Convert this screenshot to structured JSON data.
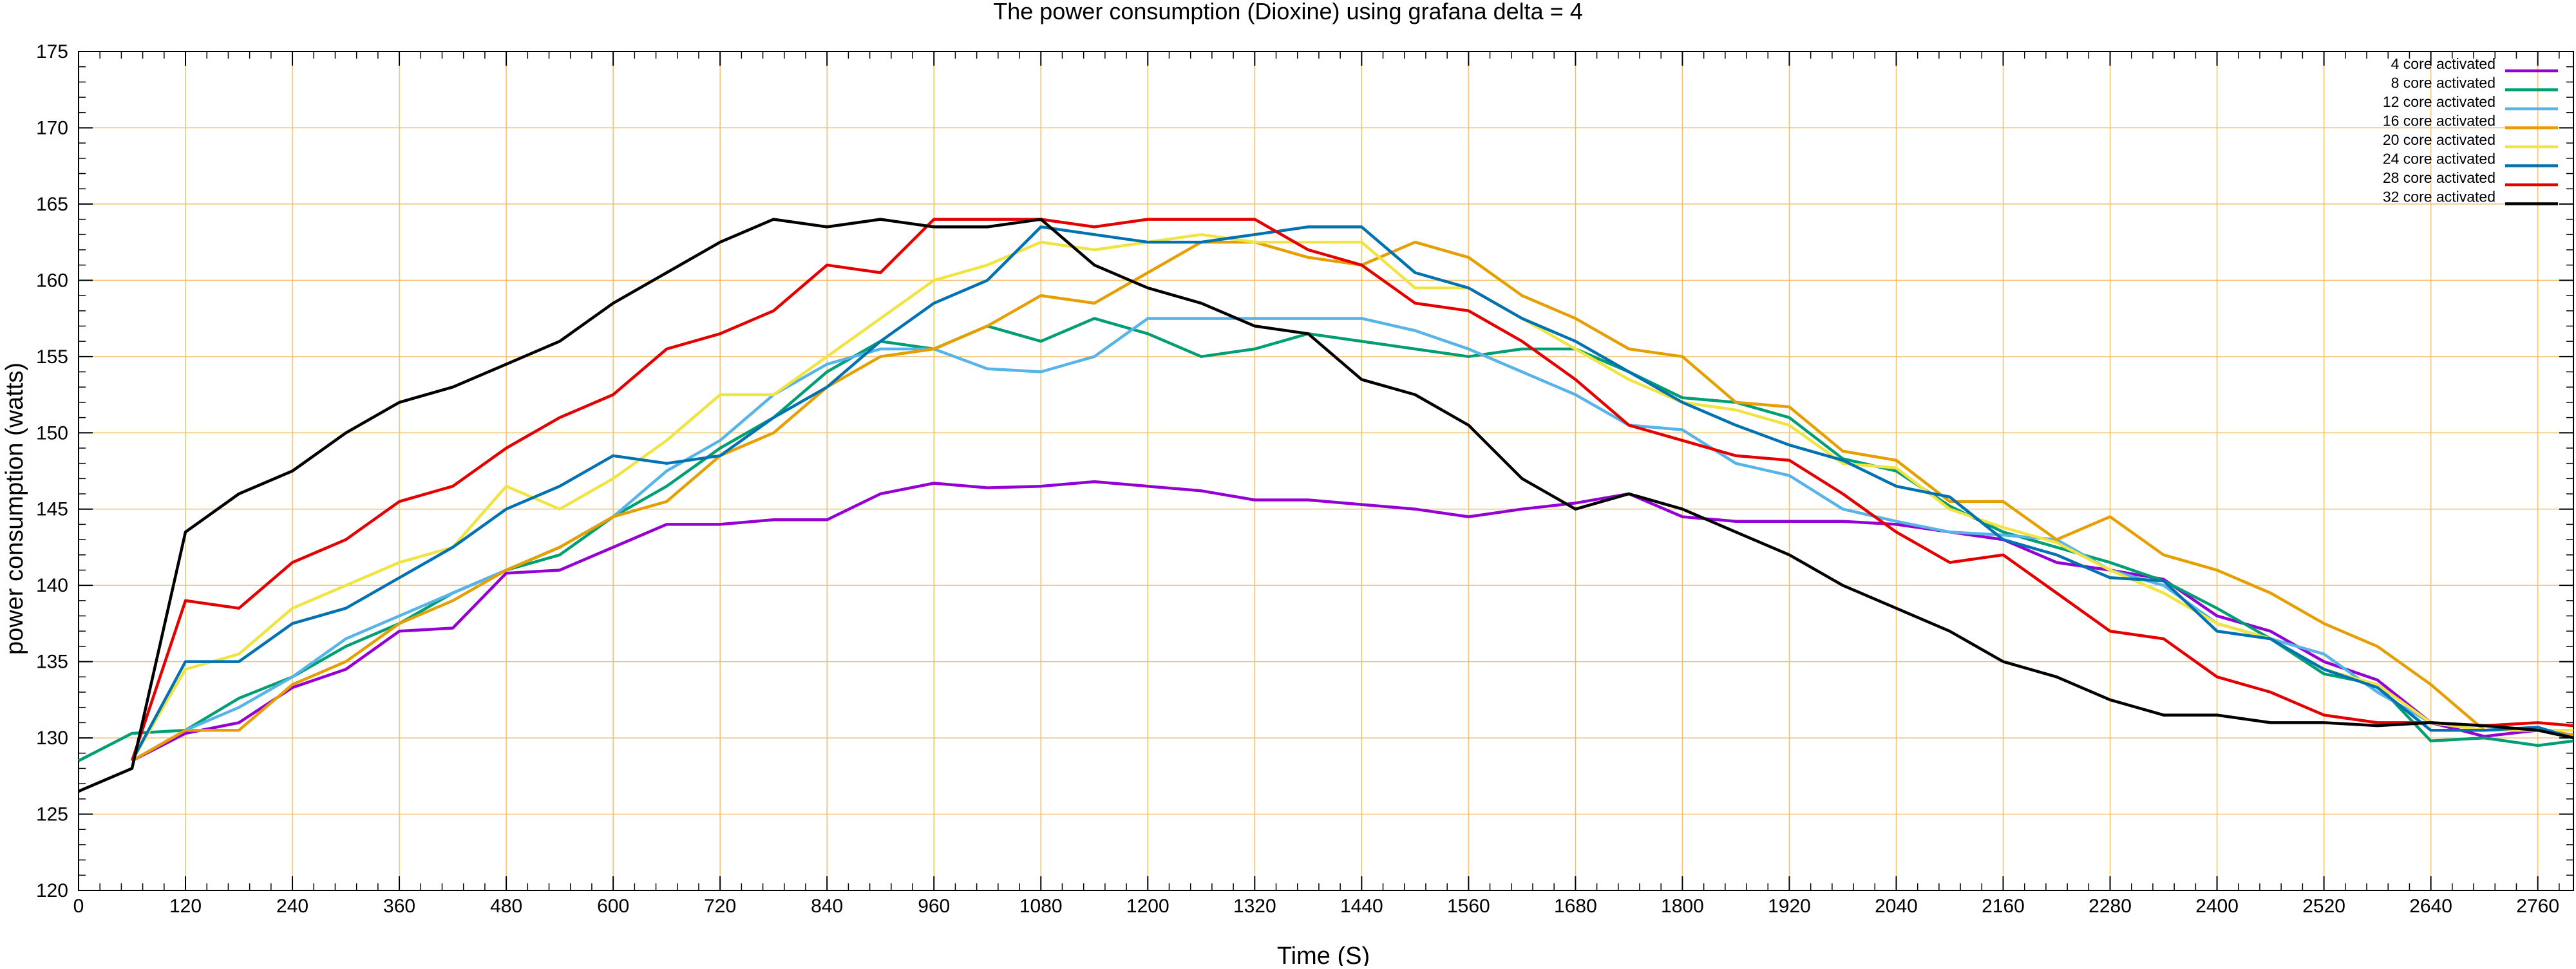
{
  "chart_data": {
    "type": "line",
    "title": "The power consumption (Dioxine) using grafana delta = 4",
    "xlabel": "Time (S)",
    "ylabel": "power consumption (watts)",
    "xlim": [
      0,
      2800
    ],
    "ylim": [
      120,
      175
    ],
    "x_ticks": [
      "0",
      "120",
      "240",
      "360",
      "480",
      "600",
      "720",
      "840",
      "960",
      "1080",
      "1200",
      "1320",
      "1440",
      "1560",
      "1680",
      "1800",
      "1920",
      "2040",
      "2160",
      "2280",
      "2400",
      "2520",
      "2640",
      "2760"
    ],
    "y_ticks": [
      "120",
      "125",
      "130",
      "135",
      "140",
      "145",
      "150",
      "155",
      "160",
      "165",
      "170",
      "175"
    ],
    "grid": true,
    "legend_position": "top-right",
    "series": [
      {
        "name": "4 core activated",
        "color": "#9400d3",
        "x": [
          60,
          120,
          180,
          240,
          300,
          360,
          420,
          480,
          540,
          600,
          660,
          720,
          780,
          840,
          900,
          960,
          1020,
          1080,
          1140,
          1200,
          1260,
          1320,
          1380,
          1440,
          1500,
          1560,
          1620,
          1680,
          1740,
          1800,
          1860,
          1920,
          1980,
          2040,
          2100,
          2160,
          2220,
          2280,
          2340,
          2400,
          2460,
          2520,
          2580,
          2640,
          2700,
          2760,
          2800
        ],
        "y": [
          128.5,
          130.3,
          131,
          133.3,
          134.5,
          137,
          137.2,
          140.8,
          141,
          142.5,
          144,
          144,
          144.3,
          144.3,
          146,
          146.7,
          146.4,
          146.5,
          146.8,
          146.5,
          146.2,
          145.6,
          145.6,
          145.3,
          145,
          144.5,
          145,
          145.4,
          146,
          144.5,
          144.2,
          144.2,
          144.2,
          144,
          143.5,
          143,
          141.5,
          141,
          140.4,
          138,
          137,
          135,
          133.8,
          131,
          130.1,
          130.5,
          130.2
        ]
      },
      {
        "name": "8 core activated",
        "color": "#009e73",
        "x": [
          0,
          60,
          120,
          180,
          240,
          300,
          360,
          420,
          480,
          540,
          600,
          660,
          720,
          780,
          840,
          900,
          960,
          1020,
          1080,
          1140,
          1200,
          1260,
          1320,
          1380,
          1440,
          1500,
          1560,
          1620,
          1680,
          1740,
          1800,
          1860,
          1920,
          1980,
          2040,
          2100,
          2160,
          2220,
          2280,
          2340,
          2400,
          2460,
          2520,
          2580,
          2640,
          2700,
          2760,
          2800
        ],
        "y": [
          128.5,
          130.3,
          130.5,
          132.6,
          134,
          136,
          137.5,
          139.5,
          141,
          142,
          144.5,
          146.5,
          149,
          151,
          154,
          156,
          155.5,
          157,
          156,
          157.5,
          156.5,
          155,
          155.5,
          156.5,
          156,
          155.5,
          155,
          155.5,
          155.5,
          154,
          152.3,
          152,
          151,
          148.3,
          147.5,
          145.2,
          143.5,
          142.5,
          141.5,
          140.3,
          138.5,
          136.5,
          134.2,
          133.5,
          129.8,
          130,
          129.5,
          129.8
        ]
      },
      {
        "name": "12 core activated",
        "color": "#56b4e9",
        "x": [
          60,
          120,
          180,
          240,
          300,
          360,
          420,
          480,
          540,
          600,
          660,
          720,
          780,
          840,
          900,
          960,
          1020,
          1080,
          1140,
          1200,
          1260,
          1320,
          1380,
          1440,
          1500,
          1560,
          1620,
          1680,
          1740,
          1800,
          1860,
          1920,
          1980,
          2040,
          2100,
          2160,
          2220,
          2280,
          2340,
          2400,
          2460,
          2520,
          2580,
          2640,
          2700,
          2760,
          2800
        ],
        "y": [
          128.5,
          130.5,
          132,
          134,
          136.5,
          138,
          139.5,
          141,
          142.5,
          144.5,
          147.5,
          149.5,
          152.5,
          154.5,
          155.5,
          155.5,
          154.2,
          154,
          155,
          157.5,
          157.5,
          157.5,
          157.5,
          157.5,
          156.7,
          155.5,
          154,
          152.5,
          150.5,
          150.2,
          148,
          147.2,
          145,
          144.2,
          143.5,
          143.3,
          143,
          141,
          140,
          137.5,
          136.5,
          135.5,
          133,
          131,
          130.5,
          130.5,
          130.5
        ]
      },
      {
        "name": "16 core activated",
        "color": "#e69f00",
        "x": [
          60,
          120,
          180,
          240,
          300,
          360,
          420,
          480,
          540,
          600,
          660,
          720,
          780,
          840,
          900,
          960,
          1020,
          1080,
          1140,
          1200,
          1260,
          1320,
          1380,
          1440,
          1500,
          1560,
          1620,
          1680,
          1740,
          1800,
          1860,
          1920,
          1980,
          2040,
          2100,
          2160,
          2220,
          2280,
          2340,
          2400,
          2460,
          2520,
          2580,
          2640,
          2700,
          2760,
          2800
        ],
        "y": [
          128.5,
          130.5,
          130.5,
          133.5,
          135,
          137.5,
          139,
          141,
          142.5,
          144.5,
          145.5,
          148.5,
          150,
          153,
          155,
          155.5,
          157,
          159,
          158.5,
          160.5,
          162.5,
          162.5,
          161.5,
          161,
          162.5,
          161.5,
          159,
          157.5,
          155.5,
          155,
          152,
          151.7,
          148.8,
          148.2,
          145.5,
          145.5,
          143,
          144.5,
          142,
          141,
          139.5,
          137.5,
          136,
          133.5,
          130.5,
          130.5,
          130.2
        ]
      },
      {
        "name": "20 core activated",
        "color": "#f0e442",
        "x": [
          60,
          120,
          180,
          240,
          300,
          360,
          420,
          480,
          540,
          600,
          660,
          720,
          780,
          840,
          900,
          960,
          1020,
          1080,
          1140,
          1200,
          1260,
          1320,
          1380,
          1440,
          1500,
          1560,
          1620,
          1680,
          1740,
          1800,
          1860,
          1920,
          1980,
          2040,
          2100,
          2160,
          2220,
          2280,
          2340,
          2400,
          2460,
          2520,
          2580,
          2640,
          2700,
          2760,
          2800
        ],
        "y": [
          128.5,
          134.5,
          135.5,
          138.5,
          140,
          141.5,
          142.5,
          146.5,
          145,
          147,
          149.5,
          152.5,
          152.5,
          155,
          157.5,
          160,
          161,
          162.5,
          162,
          162.5,
          163,
          162.5,
          162.5,
          162.5,
          159.5,
          159.5,
          157.5,
          155.5,
          153.5,
          152,
          151.5,
          150.5,
          148,
          147.7,
          145,
          143.8,
          142.8,
          141,
          139.5,
          137.5,
          136.5,
          134.5,
          133.5,
          131,
          130.5,
          130.5,
          130.5
        ]
      },
      {
        "name": "24 core activated",
        "color": "#0072b2",
        "x": [
          60,
          120,
          180,
          240,
          300,
          360,
          420,
          480,
          540,
          600,
          660,
          720,
          780,
          840,
          900,
          960,
          1020,
          1080,
          1140,
          1200,
          1260,
          1320,
          1380,
          1440,
          1500,
          1560,
          1620,
          1680,
          1740,
          1800,
          1860,
          1920,
          1980,
          2040,
          2100,
          2160,
          2220,
          2280,
          2340,
          2400,
          2460,
          2520,
          2580,
          2640,
          2700,
          2760,
          2800
        ],
        "y": [
          128.5,
          135,
          135,
          137.5,
          138.5,
          140.5,
          142.5,
          145,
          146.5,
          148.5,
          148,
          148.5,
          151,
          153,
          156,
          158.5,
          160,
          163.5,
          163,
          162.5,
          162.5,
          163,
          163.5,
          163.5,
          160.5,
          159.5,
          157.5,
          156,
          154,
          152,
          150.5,
          149.2,
          148.2,
          146.5,
          145.8,
          143,
          142,
          140.5,
          140.3,
          137,
          136.5,
          134.5,
          133.3,
          130.5,
          130.5,
          130.7,
          130
        ]
      },
      {
        "name": "28 core activated",
        "color": "#e50000",
        "x": [
          60,
          120,
          180,
          240,
          300,
          360,
          420,
          480,
          540,
          600,
          660,
          720,
          780,
          840,
          900,
          960,
          1020,
          1080,
          1140,
          1200,
          1260,
          1320,
          1380,
          1440,
          1500,
          1560,
          1620,
          1680,
          1740,
          1800,
          1860,
          1920,
          1980,
          2040,
          2100,
          2160,
          2220,
          2280,
          2340,
          2400,
          2460,
          2520,
          2580,
          2640,
          2700,
          2760,
          2800
        ],
        "y": [
          128.5,
          139,
          138.5,
          141.5,
          143,
          145.5,
          146.5,
          149,
          151,
          152.5,
          155.5,
          156.5,
          158,
          161,
          160.5,
          164,
          164,
          164,
          163.5,
          164,
          164,
          164,
          162,
          161,
          158.5,
          158,
          156,
          153.5,
          150.5,
          149.5,
          148.5,
          148.2,
          146,
          143.5,
          141.5,
          142,
          139.5,
          137,
          136.5,
          134,
          133,
          131.5,
          131,
          131,
          130.8,
          131,
          130.8
        ]
      },
      {
        "name": "32 core activated",
        "color": "#000000",
        "x": [
          0,
          60,
          120,
          180,
          240,
          300,
          360,
          420,
          480,
          540,
          600,
          660,
          720,
          780,
          840,
          900,
          960,
          1020,
          1080,
          1140,
          1200,
          1260,
          1320,
          1380,
          1440,
          1500,
          1560,
          1620,
          1680,
          1740,
          1800,
          1860,
          1920,
          1980,
          2040,
          2100,
          2160,
          2220,
          2280,
          2340,
          2400,
          2460,
          2520,
          2580,
          2640,
          2700,
          2760,
          2800
        ],
        "y": [
          126.5,
          128,
          143.5,
          146,
          147.5,
          150,
          152,
          153,
          154.5,
          156,
          158.5,
          160.5,
          162.5,
          164,
          163.5,
          164,
          163.5,
          163.5,
          164,
          161,
          159.5,
          158.5,
          157,
          156.5,
          153.5,
          152.5,
          150.5,
          147,
          145,
          146,
          145,
          143.5,
          142,
          140,
          138.5,
          137,
          135,
          134,
          132.5,
          131.5,
          131.5,
          131,
          131,
          130.8,
          131,
          130.8,
          130.5,
          130
        ]
      }
    ]
  }
}
